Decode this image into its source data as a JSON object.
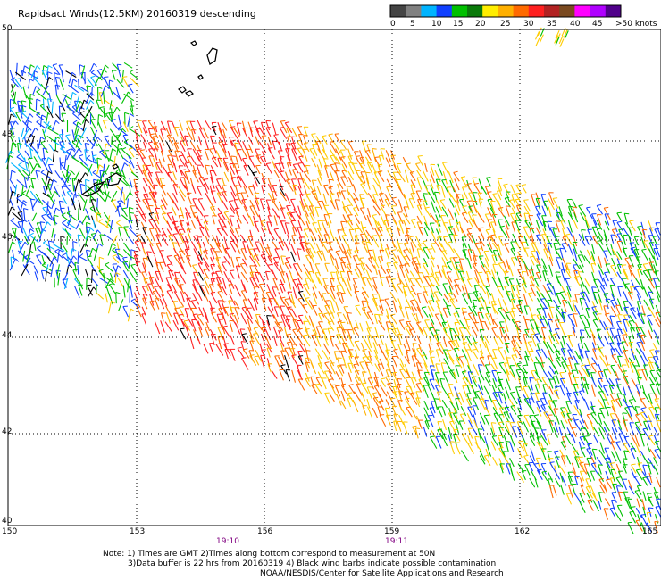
{
  "title": "Rapidsact Winds(12.5KM) 20160319 descending",
  "legend": {
    "colors": [
      "#444444",
      "#808080",
      "#00b4ff",
      "#1040ff",
      "#00c000",
      "#0a7a0a",
      "#ffee00",
      "#ffb000",
      "#ff6a00",
      "#ff2020",
      "#b22222",
      "#7a4a20",
      "#ff00ff",
      "#b000ff",
      "#50008a"
    ],
    "labels": [
      "0",
      "5",
      "10",
      "15",
      "20",
      "25",
      "30",
      "35",
      "40",
      "45",
      ">50 knots"
    ]
  },
  "lat_labels": [
    "50",
    "48",
    "46",
    "44",
    "42",
    "40"
  ],
  "lon_labels": [
    "150",
    "153",
    "156",
    "159",
    "162",
    "165"
  ],
  "times": [
    "19:10",
    "19:11"
  ],
  "notes": [
    "Note: 1) Times are GMT 2)Times along bottom correspond to measurement at 50N",
    "3)Data buffer is 22 hrs from 20160319 4) Black wind barbs indicate possible contamination",
    "NOAA/NESDIS/Center for Satellite Applications and Research"
  ]
}
